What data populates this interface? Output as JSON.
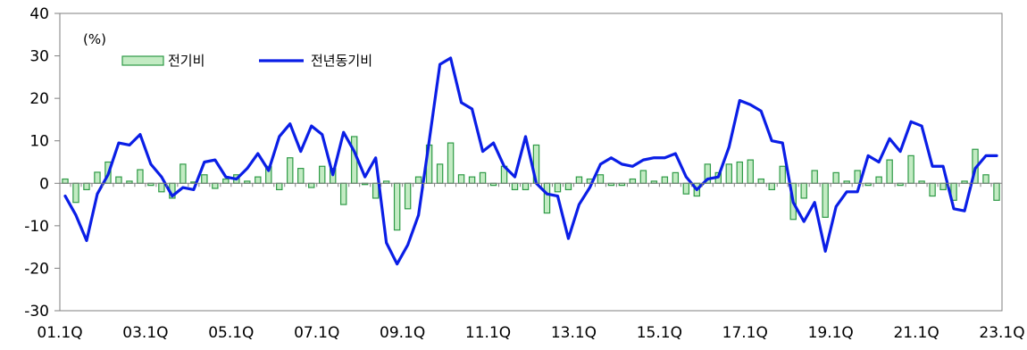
{
  "chart_data": {
    "type": "bar+line",
    "unit_label": "(%)",
    "ylim": [
      -30,
      40
    ],
    "yticks": [
      -30,
      -20,
      -10,
      0,
      10,
      20,
      30,
      40
    ],
    "y_tick_labels": [
      "-30",
      "-20",
      "-10",
      "0",
      "10",
      "20",
      "30",
      "40"
    ],
    "xtick_labels": [
      "01.1Q",
      "03.1Q",
      "05.1Q",
      "07.1Q",
      "09.1Q",
      "11.1Q",
      "13.1Q",
      "15.1Q",
      "17.1Q",
      "19.1Q",
      "21.1Q",
      "23.1Q"
    ],
    "xtick_positions": [
      0,
      8,
      16,
      24,
      32,
      40,
      48,
      56,
      64,
      72,
      80,
      88
    ],
    "legend_placement": "top-left",
    "colors": {
      "bar_fill": "#c3ebc3",
      "bar_edge": "#2e9a46",
      "line": "#0a1ee6",
      "axis": "#7f7f7f"
    },
    "series": [
      {
        "name": "전기비",
        "kind": "bar",
        "values": [
          1.0,
          -4.5,
          -1.5,
          2.6,
          5.0,
          1.5,
          0.5,
          3.2,
          -0.5,
          -2.0,
          -3.5,
          4.5,
          0.3,
          2.0,
          -1.2,
          1.0,
          2.0,
          0.5,
          1.5,
          4.0,
          -1.5,
          6.0,
          3.5,
          -1.0,
          4.0,
          3.5,
          -5.0,
          11.0,
          -0.3,
          -3.5,
          0.5,
          -11.0,
          -6.0,
          1.5,
          9.0,
          4.5,
          9.5,
          2.0,
          1.5,
          2.5,
          -0.5,
          4.0,
          -1.5,
          -1.5,
          9.0,
          -7.0,
          -2.0,
          -1.5,
          1.5,
          1.0,
          2.0,
          -0.5,
          -0.5,
          1.0,
          3.0,
          0.5,
          1.5,
          2.5,
          -2.5,
          -3.0,
          4.5,
          2.5,
          4.5,
          5.0,
          5.5,
          1.0,
          -1.5,
          4.0,
          -8.5,
          -3.5,
          3.0,
          -8.0,
          2.5,
          0.5,
          3.0,
          -0.5,
          1.5,
          5.5,
          -0.5,
          6.5,
          0.5,
          -3.0,
          -1.5,
          -4.0,
          0.5,
          8.0,
          2.0,
          -4.0
        ]
      },
      {
        "name": "전년동기비",
        "kind": "line",
        "values": [
          -3.0,
          -7.5,
          -13.5,
          -2.5,
          2.0,
          9.5,
          9.0,
          11.5,
          4.5,
          1.5,
          -3.0,
          -1.0,
          -1.5,
          5.0,
          5.5,
          1.5,
          1.0,
          3.5,
          7.0,
          3.0,
          11.0,
          14.0,
          7.5,
          13.5,
          11.5,
          2.0,
          12.0,
          7.5,
          1.5,
          6.0,
          -14.0,
          -19.0,
          -14.5,
          -7.5,
          10.0,
          28.0,
          29.5,
          19.0,
          17.5,
          7.5,
          9.5,
          4.0,
          1.5,
          11.0,
          0.0,
          -2.5,
          -3.0,
          -13.0,
          -5.0,
          -1.0,
          4.5,
          6.0,
          4.5,
          4.0,
          5.5,
          6.0,
          6.0,
          7.0,
          1.5,
          -1.5,
          1.0,
          1.5,
          8.5,
          19.5,
          18.5,
          17.0,
          10.0,
          9.5,
          -4.5,
          -9.0,
          -4.5,
          -16.0,
          -5.5,
          -2.0,
          -2.0,
          6.5,
          5.0,
          10.5,
          7.5,
          14.5,
          13.5,
          4.0,
          4.0,
          -6.0,
          -6.5,
          3.5,
          6.5,
          6.5
        ]
      }
    ]
  }
}
